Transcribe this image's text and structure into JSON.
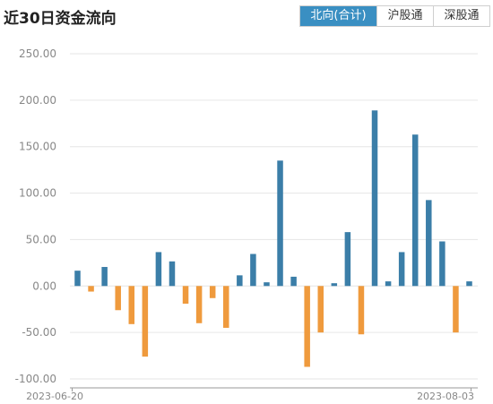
{
  "header": {
    "title": "近30日资金流向",
    "tabs": [
      {
        "label": "北向(合计)",
        "active": true
      },
      {
        "label": "沪股通",
        "active": false
      },
      {
        "label": "深股通",
        "active": false
      }
    ]
  },
  "colors": {
    "positive": "#3b7ea8",
    "negative": "#ef9a3d",
    "accent": "#3a8fc2",
    "grid": "#e6e6e6",
    "axis_text": "#888888"
  },
  "chart_data": {
    "type": "bar",
    "title": "",
    "xlabel": "",
    "ylabel": "",
    "ylim": [
      -100,
      250
    ],
    "yticks": [
      "250.00",
      "200.00",
      "150.00",
      "100.00",
      "50.00",
      "0.00",
      "-50.00",
      "-100.00"
    ],
    "ytick_values": [
      250,
      200,
      150,
      100,
      50,
      0,
      -50,
      -100
    ],
    "x_start_label": "2023-06-20",
    "x_end_label": "2023-08-03",
    "grid": "horizontal",
    "values": [
      16.5,
      -6,
      20.5,
      -26,
      -41,
      -76,
      36.5,
      26.5,
      -19,
      -40,
      -13,
      -45,
      11.5,
      34.5,
      4,
      135,
      10,
      -87,
      -50,
      3,
      58,
      -52,
      189,
      5,
      36.5,
      163,
      92.5,
      48,
      -50,
      5
    ]
  }
}
